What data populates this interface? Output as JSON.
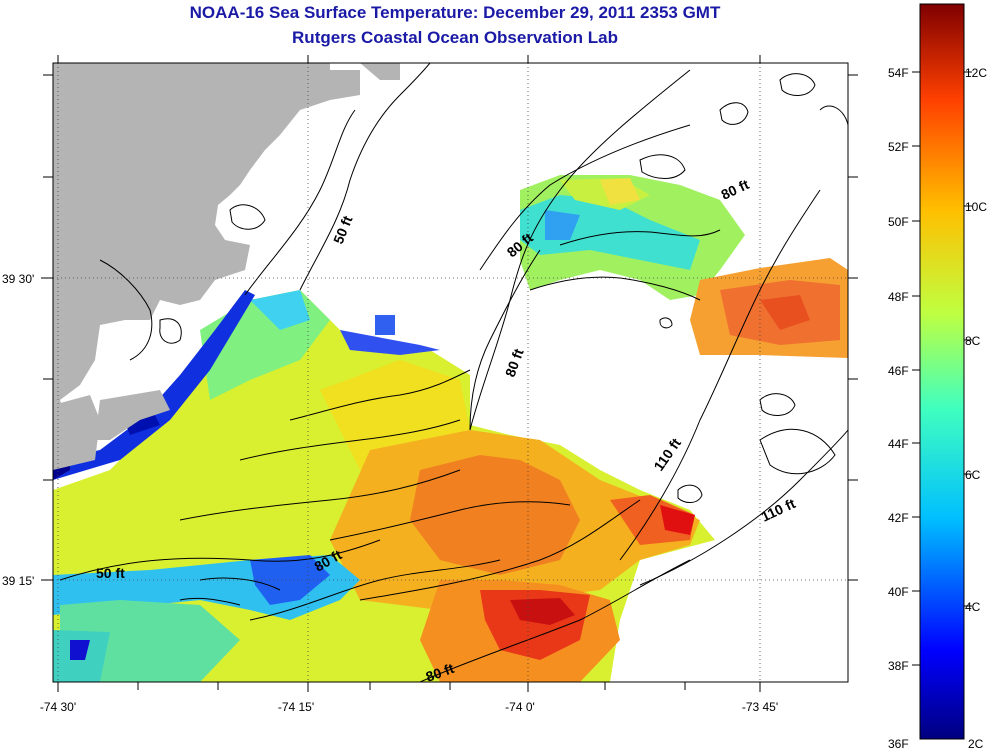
{
  "title": "NOAA-16 Sea Surface Temperature:  December 29, 2011 2353 GMT",
  "subtitle": "Rutgers Coastal Ocean Observation Lab",
  "x_ticks": [
    "-74 30'",
    "-74 15'",
    "-74 0'",
    "-73 45'"
  ],
  "y_ticks": [
    "39 30'",
    "39 15'"
  ],
  "contour_labels": [
    "50 ft",
    "80 ft",
    "80 ft",
    "80 ft",
    "110 ft",
    "110 ft",
    "50 ft",
    "80 ft",
    "80 ft"
  ],
  "colorbar": {
    "fahrenheit": [
      "54F",
      "52F",
      "50F",
      "48F",
      "46F",
      "44F",
      "42F",
      "40F",
      "38F",
      "36F"
    ],
    "celsius": [
      "12C",
      "10C",
      "8C",
      "6C",
      "4C",
      "2C"
    ],
    "colors": [
      "#00007f",
      "#0000ff",
      "#00bfff",
      "#40ffbf",
      "#bfff40",
      "#ffbf00",
      "#ff4000",
      "#7f0000"
    ]
  },
  "colors": {
    "land": "#b4b4b4",
    "no_data": "#ffffff",
    "title": "#1a1aa6"
  }
}
